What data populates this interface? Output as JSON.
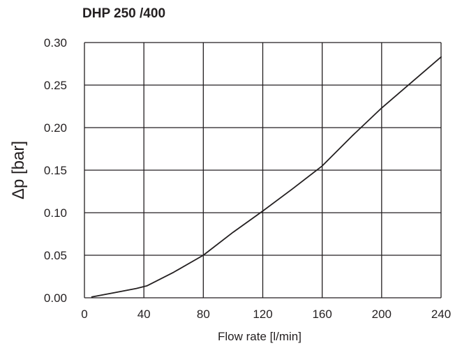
{
  "chart_data": {
    "type": "line",
    "title": "DHP 250 /400",
    "xlabel": "Flow rate [l/min]",
    "ylabel": "Δp [bar]",
    "xlim": [
      0,
      240
    ],
    "ylim": [
      0,
      0.3
    ],
    "x_ticks": [
      0,
      40,
      80,
      120,
      160,
      200,
      240
    ],
    "y_ticks": [
      0.0,
      0.05,
      0.1,
      0.15,
      0.2,
      0.25,
      0.3
    ],
    "x_tick_labels": [
      "0",
      "40",
      "80",
      "120",
      "160",
      "200",
      "240"
    ],
    "y_tick_labels": [
      "0.00",
      "0.05",
      "0.10",
      "0.15",
      "0.20",
      "0.25",
      "0.30"
    ],
    "grid": true,
    "series": [
      {
        "x": [
          5,
          20,
          35,
          42,
          60,
          80,
          100,
          120,
          140,
          160,
          180,
          200,
          220,
          240
        ],
        "values": [
          0.001,
          0.006,
          0.011,
          0.014,
          0.03,
          0.05,
          0.077,
          0.102,
          0.128,
          0.155,
          0.19,
          0.223,
          0.253,
          0.283
        ],
        "color": "#231f20"
      }
    ]
  }
}
